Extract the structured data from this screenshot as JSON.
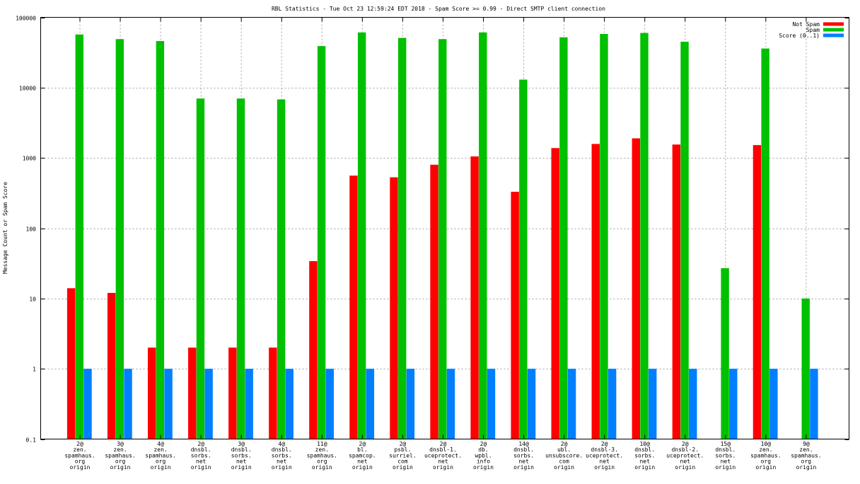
{
  "chart_data": {
    "type": "bar",
    "title": "RBL Statistics - Tue Oct 23 12:59:24 EDT 2018 - Spam Score >= 0.99 - Direct SMTP client connection",
    "xlabel": "",
    "ylabel": "Message Count or Spam Score",
    "yscale": "log",
    "ylim": [
      0.1,
      100000
    ],
    "y_ticks": [
      0.1,
      1,
      10,
      100,
      1000,
      10000,
      100000
    ],
    "y_tick_labels": [
      "0.1",
      "1",
      "10",
      "100",
      "1000",
      "10000",
      "100000"
    ],
    "grid": true,
    "legend_position": "top-right",
    "categories": [
      [
        "2@",
        "zen.",
        "spamhaus.",
        "org",
        "origin"
      ],
      [
        "3@",
        "zen.",
        "spamhaus.",
        "org",
        "origin"
      ],
      [
        "4@",
        "zen.",
        "spamhaus.",
        "org",
        "origin"
      ],
      [
        "2@",
        "dnsbl.",
        "sorbs.",
        "net",
        "origin"
      ],
      [
        "3@",
        "dnsbl.",
        "sorbs.",
        "net",
        "origin"
      ],
      [
        "4@",
        "dnsbl.",
        "sorbs.",
        "net",
        "origin"
      ],
      [
        "11@",
        "zen.",
        "spamhaus.",
        "org",
        "origin"
      ],
      [
        "2@",
        "bl.",
        "spamcop.",
        "net",
        "origin"
      ],
      [
        "2@",
        "psbl.",
        "surriel.",
        "com",
        "origin"
      ],
      [
        "2@",
        "dnsbl-1.",
        "uceprotect.",
        "net",
        "origin"
      ],
      [
        "2@",
        "db.",
        "wpbl.",
        "info",
        "origin"
      ],
      [
        "14@",
        "dnsbl.",
        "sorbs.",
        "net",
        "origin"
      ],
      [
        "2@",
        "ubl.",
        "unsubscore.",
        "com",
        "origin"
      ],
      [
        "2@",
        "dnsbl-3.",
        "uceprotect.",
        "net",
        "origin"
      ],
      [
        "10@",
        "dnsbl.",
        "sorbs.",
        "net",
        "origin"
      ],
      [
        "2@",
        "dnsbl-2.",
        "uceprotect.",
        "net",
        "origin"
      ],
      [
        "15@",
        "dnsbl.",
        "sorbs.",
        "net",
        "origin"
      ],
      [
        "10@",
        "zen.",
        "spamhaus.",
        "org",
        "origin"
      ],
      [
        "9@",
        "zen.",
        "spamhaus.",
        "org",
        "origin"
      ]
    ],
    "series": [
      {
        "name": "Not Spam",
        "color": "#ff0000",
        "values": [
          14,
          12,
          2,
          2,
          2,
          2,
          34,
          560,
          530,
          800,
          1050,
          330,
          1380,
          1580,
          1900,
          1550,
          null,
          1520,
          null
        ]
      },
      {
        "name": "Spam",
        "color": "#00c000",
        "values": [
          57000,
          49000,
          46000,
          7000,
          7000,
          6800,
          39000,
          61000,
          51000,
          49000,
          61000,
          13000,
          52000,
          58000,
          60000,
          45000,
          27,
          36000,
          10
        ]
      },
      {
        "name": "Score (0..1)",
        "color": "#0080ff",
        "values": [
          1,
          1,
          1,
          1,
          1,
          1,
          1,
          1,
          1,
          1,
          1,
          1,
          1,
          1,
          1,
          1,
          1,
          1,
          1
        ]
      }
    ]
  }
}
